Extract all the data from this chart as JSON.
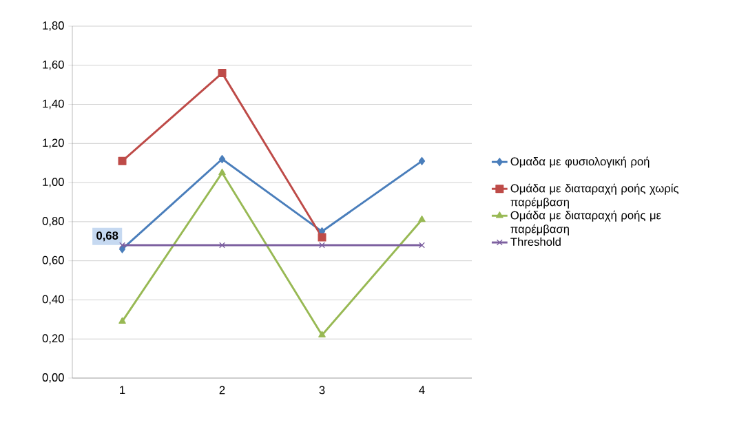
{
  "chart_data": {
    "type": "line",
    "categories": [
      "1",
      "2",
      "3",
      "4"
    ],
    "series": [
      {
        "name": "Ομαδα με φυσιολογική ροή",
        "color": "#4a7ebb",
        "marker": "diamond",
        "values": [
          0.66,
          1.12,
          0.75,
          1.11
        ]
      },
      {
        "name": "Ομάδα με διαταραχή ροής χωρίς παρέμβαση",
        "color": "#be4b48",
        "marker": "square",
        "values": [
          1.11,
          1.56,
          0.72,
          null
        ]
      },
      {
        "name": "Ομάδα με διαταραχή ροής με παρέμβαση",
        "color": "#98b954",
        "marker": "triangle",
        "values": [
          0.29,
          1.05,
          0.22,
          0.81
        ]
      },
      {
        "name": "Threshold",
        "color": "#7d60a0",
        "marker": "cross",
        "values": [
          0.68,
          0.68,
          0.68,
          0.68
        ],
        "value_labels": [
          "0,68",
          null,
          null,
          null
        ]
      }
    ],
    "ylim": [
      0,
      1.8
    ],
    "yticks": [
      {
        "value": 0,
        "label": "0,00"
      },
      {
        "value": 0.2,
        "label": "0,20"
      },
      {
        "value": 0.4,
        "label": "0,40"
      },
      {
        "value": 0.6,
        "label": "0,60"
      },
      {
        "value": 0.8,
        "label": "0,80"
      },
      {
        "value": 1.0,
        "label": "1,00"
      },
      {
        "value": 1.2,
        "label": "1,20"
      },
      {
        "value": 1.4,
        "label": "1,40"
      },
      {
        "value": 1.6,
        "label": "1,60"
      },
      {
        "value": 1.8,
        "label": "1,80"
      }
    ],
    "grid": "y",
    "legend": "right"
  }
}
